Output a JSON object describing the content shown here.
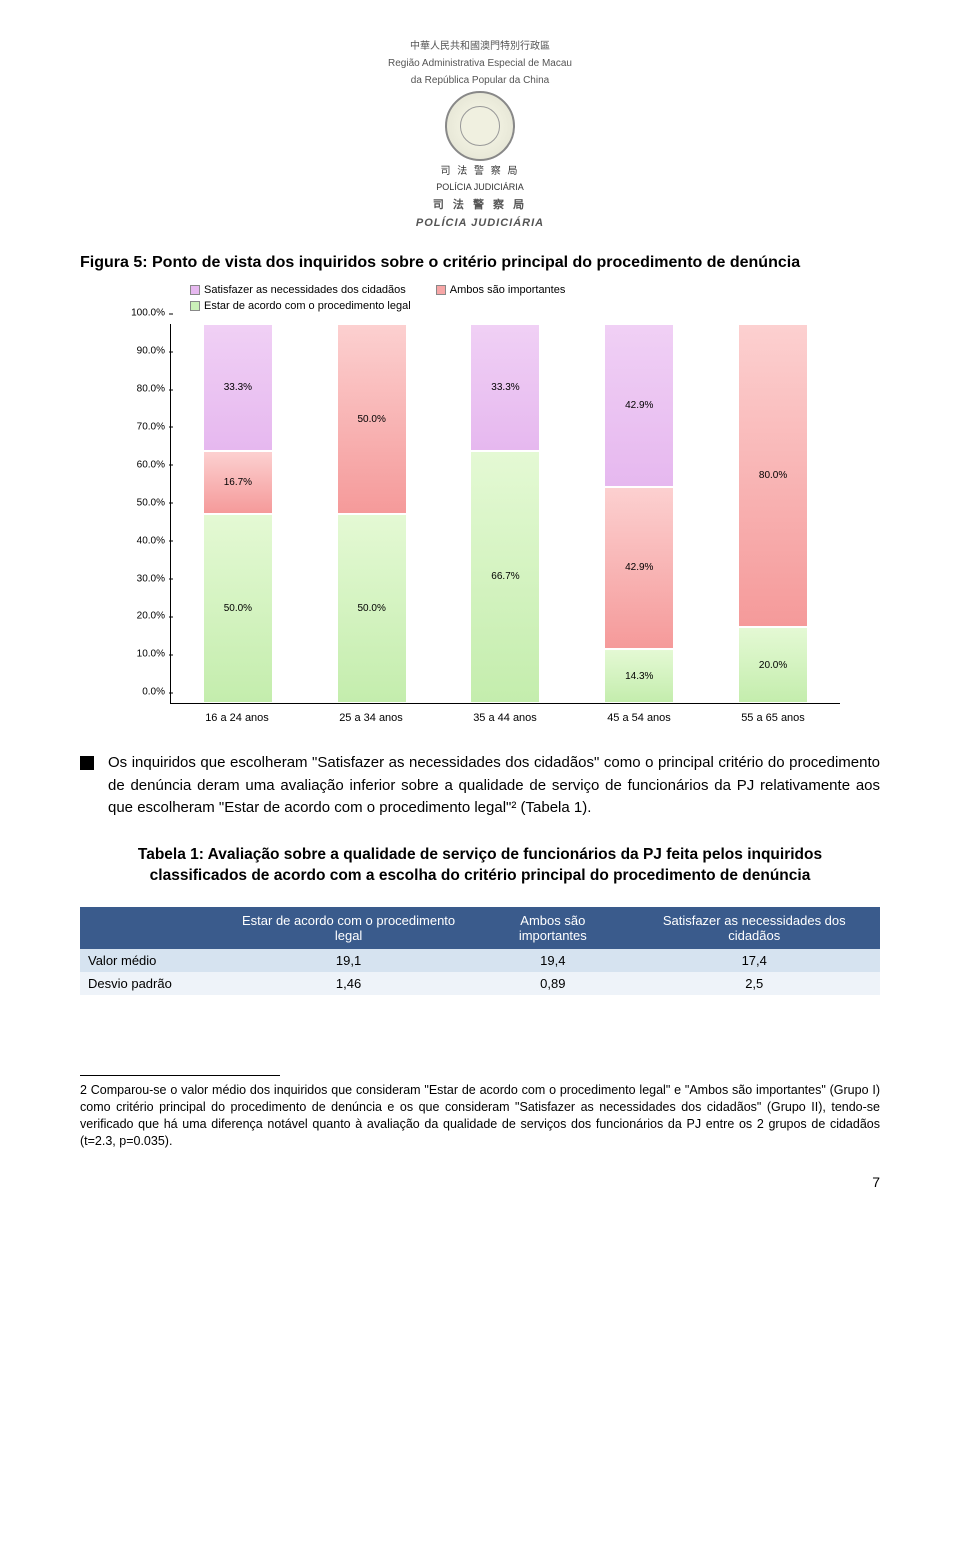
{
  "header": {
    "line1": "中華人民共和國澳門特別行政區",
    "line2": "Região Administrativa Especial de Macau",
    "line3": "da República Popular da China",
    "sub1": "司 法 警 察 局",
    "sub2": "POLÍCIA JUDICIÁRIA",
    "sub_small": "POLÍCIA JUDICIÁRIA"
  },
  "figure": {
    "title": "Figura 5: Ponto de vista dos inquiridos sobre o critério principal do procedimento de denúncia",
    "legend": {
      "s1": "Satisfazer as necessidades dos cidadãos",
      "s2": "Ambos são importantes",
      "s3": "Estar de acordo com o procedimento legal"
    },
    "colors": {
      "s1": "#e6b8ef",
      "s2": "#f7a6a6",
      "s3": "#cbf0b8",
      "s1_grad": "linear-gradient(#f0d0f5,#e6b8ef)",
      "s2_grad": "linear-gradient(#fcd0d0,#f59a9a)",
      "s3_grad": "linear-gradient(#e4f9d4,#c4edad)"
    },
    "yticks": [
      "0.0%",
      "10.0%",
      "20.0%",
      "30.0%",
      "40.0%",
      "50.0%",
      "60.0%",
      "70.0%",
      "80.0%",
      "90.0%",
      "100.0%"
    ],
    "categories": [
      "16 a 24 anos",
      "25 a 34 anos",
      "35 a 44 anos",
      "45 a 54 anos",
      "55 a 65 anos"
    ],
    "bars": [
      {
        "segs": [
          {
            "v": 50.0,
            "c": "s3",
            "label": "50.0%"
          },
          {
            "v": 16.7,
            "c": "s2",
            "label": "16.7%"
          },
          {
            "v": 33.3,
            "c": "s1",
            "label": "33.3%"
          }
        ]
      },
      {
        "segs": [
          {
            "v": 50.0,
            "c": "s3",
            "label": "50.0%"
          },
          {
            "v": 50.0,
            "c": "s2",
            "label": "50.0%"
          }
        ]
      },
      {
        "segs": [
          {
            "v": 66.7,
            "c": "s3",
            "label": "66.7%"
          },
          {
            "v": 33.3,
            "c": "s1",
            "label": "33.3%"
          }
        ]
      },
      {
        "segs": [
          {
            "v": 14.3,
            "c": "s3",
            "label": "14.3%"
          },
          {
            "v": 42.9,
            "c": "s2",
            "label": "42.9%"
          },
          {
            "v": 42.9,
            "c": "s1",
            "label": "42.9%"
          }
        ]
      },
      {
        "segs": [
          {
            "v": 20.0,
            "c": "s3",
            "label": "20.0%"
          },
          {
            "v": 80.0,
            "c": "s2",
            "label": "80.0%"
          }
        ]
      }
    ]
  },
  "bullet": "Os inquiridos que escolheram \"Satisfazer as necessidades dos cidadãos\" como o principal critério do procedimento de denúncia deram uma avaliação inferior sobre a qualidade de serviço de funcionários da PJ relativamente aos que escolheram \"Estar de acordo com o procedimento legal\"² (Tabela 1).",
  "table": {
    "title": "Tabela 1: Avaliação sobre a qualidade de serviço de funcionários da PJ feita pelos inquiridos classificados de acordo com a escolha do critério principal do procedimento de denúncia",
    "headers": [
      "",
      "Estar de acordo com o procedimento legal",
      "Ambos são importantes",
      "Satisfazer as necessidades dos cidadãos"
    ],
    "rows": [
      {
        "label": "Valor médio",
        "c1": "19,1",
        "c2": "19,4",
        "c3": "17,4"
      },
      {
        "label": "Desvio padrão",
        "c1": "1,46",
        "c2": "0,89",
        "c3": "2,5"
      }
    ],
    "header_bg": "#3a5b8c",
    "row1_bg": "#d6e3f0",
    "row2_bg": "#eef3f9"
  },
  "footnote": "2 Comparou-se o valor médio dos inquiridos que consideram \"Estar de acordo com o procedimento legal\" e \"Ambos são importantes\" (Grupo I) como critério principal do procedimento de denúncia e os que consideram \"Satisfazer as necessidades dos cidadãos\" (Grupo II), tendo-se verificado que há uma diferença notável quanto à avaliação da qualidade de serviços dos funcionários da PJ entre os 2 grupos de cidadãos (t=2.3, p=0.035).",
  "page_num": "7"
}
